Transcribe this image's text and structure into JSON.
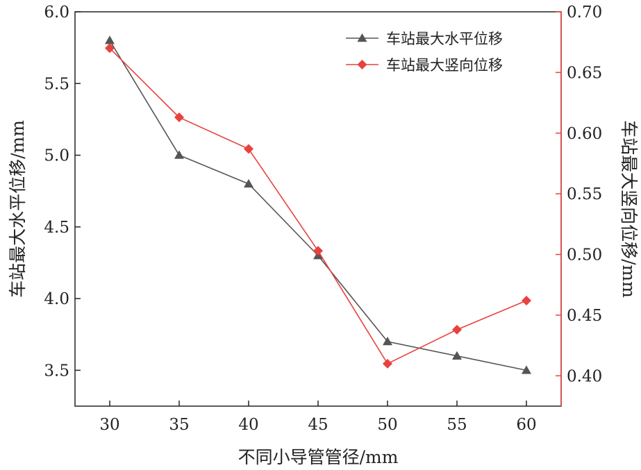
{
  "chart_data": {
    "type": "line",
    "xlabel": "不同小导管管径/mm",
    "ylabel_left": "车站最大水平位移/mm",
    "ylabel_right": "车站最大竖向位移/mm",
    "x": [
      30,
      35,
      40,
      45,
      50,
      55,
      60
    ],
    "xlim": [
      27.5,
      62.5
    ],
    "ylim_left": [
      3.25,
      6.0
    ],
    "ylim_right": [
      0.375,
      0.7
    ],
    "xticks": [
      "30",
      "35",
      "40",
      "45",
      "50",
      "55",
      "60"
    ],
    "yticks_left": [
      "3.5",
      "4.0",
      "4.5",
      "5.0",
      "5.5",
      "6.0"
    ],
    "yticks_right": [
      "0.40",
      "0.45",
      "0.50",
      "0.55",
      "0.60",
      "0.65",
      "0.70"
    ],
    "legend_position": "top-right",
    "grid": false,
    "series": [
      {
        "name": "车站最大水平位移",
        "axis": "left",
        "marker": "triangle",
        "color": "#555555",
        "values": [
          5.8,
          5.0,
          4.8,
          4.3,
          3.7,
          3.6,
          3.5
        ]
      },
      {
        "name": "车站最大竖向位移",
        "axis": "right",
        "marker": "diamond",
        "color": "#e8423f",
        "values": [
          0.67,
          0.613,
          0.587,
          0.503,
          0.41,
          0.438,
          0.462
        ]
      }
    ]
  }
}
